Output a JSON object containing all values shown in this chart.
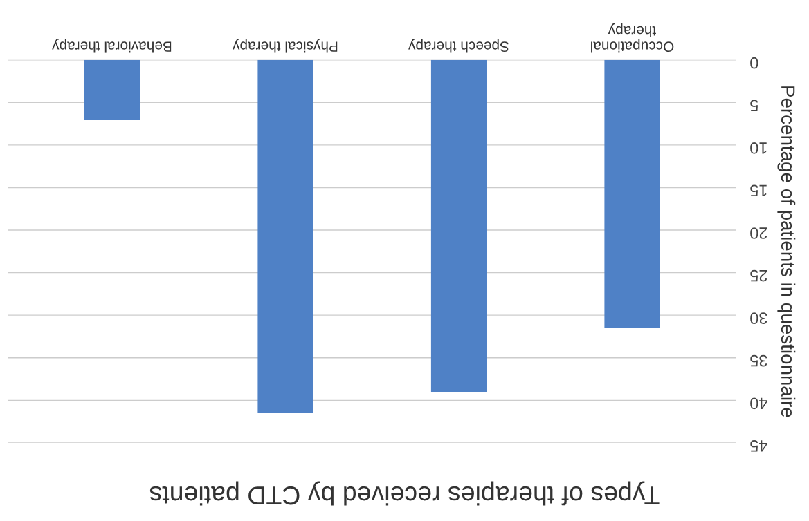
{
  "chart_data": {
    "type": "bar",
    "title": "Types of therapies received by CTD patients",
    "ylabel": "Percentage of patients in questionnaire",
    "categories": [
      "Behavioral therapy",
      "Physical therapy",
      "Speech therapy",
      "Occupational\ntherapy"
    ],
    "values": [
      7,
      41.5,
      39,
      31.5
    ],
    "color": "#4f81c6",
    "ylim": [
      45,
      0
    ],
    "yticks": [
      0,
      5,
      10,
      15,
      20,
      25,
      30,
      35,
      40,
      45
    ],
    "grid": "y"
  }
}
